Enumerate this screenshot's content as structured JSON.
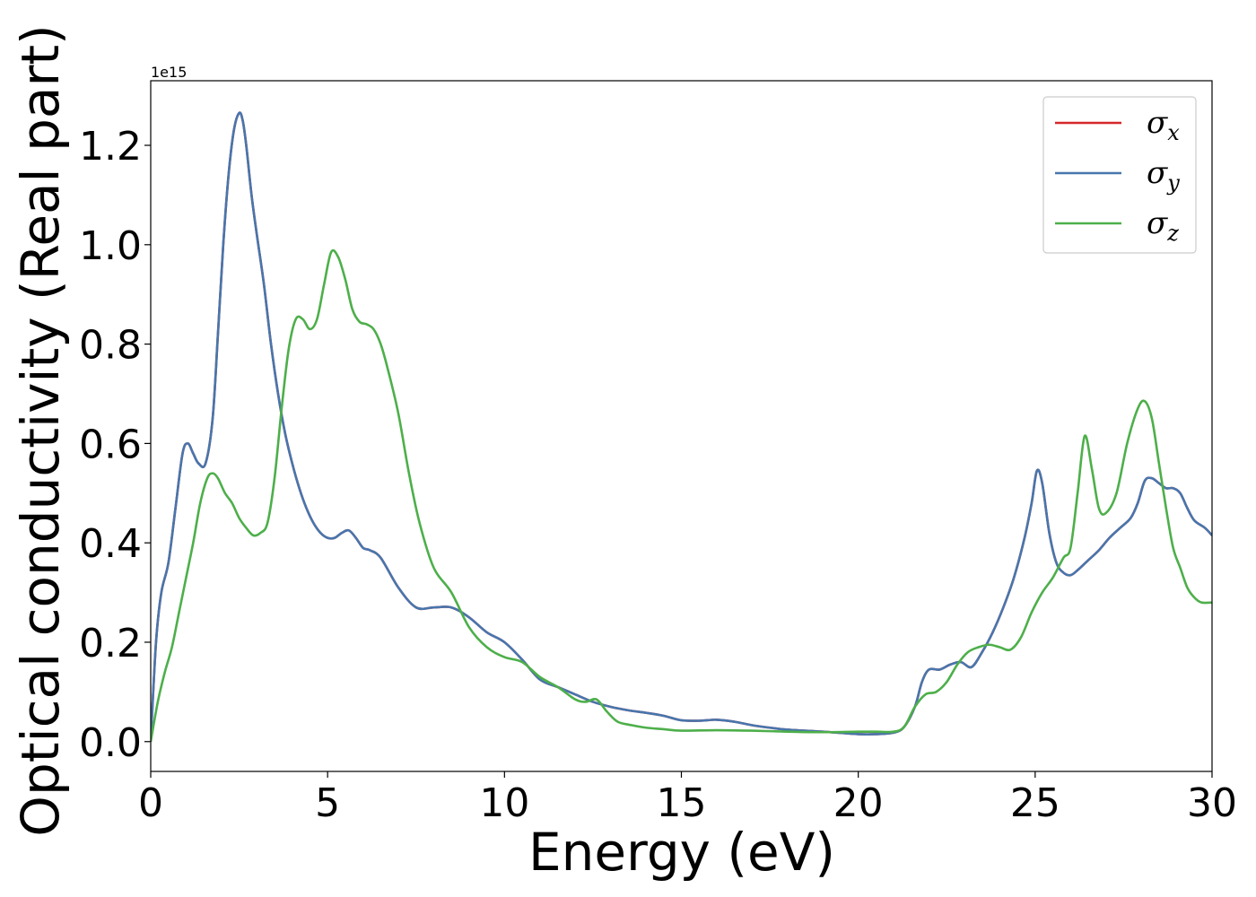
{
  "chart_data": {
    "type": "line",
    "xlabel": "Energy (eV)",
    "ylabel": "Optical conductivity (Real part)",
    "y_offset_label": "1e15",
    "xlim": [
      0,
      30
    ],
    "ylim": [
      -0.06,
      1.33
    ],
    "xticks": [
      0,
      5,
      10,
      15,
      20,
      25,
      30
    ],
    "xtick_labels": [
      "0",
      "5",
      "10",
      "15",
      "20",
      "25",
      "30"
    ],
    "yticks": [
      0.0,
      0.2,
      0.4,
      0.6,
      0.8,
      1.0,
      1.2
    ],
    "ytick_labels": [
      "0.0",
      "0.2",
      "0.4",
      "0.6",
      "0.8",
      "1.0",
      "1.2"
    ],
    "grid": false,
    "legend_position": "top-right",
    "series": [
      {
        "name": "σx",
        "symbol": "σ",
        "sub": "x",
        "color": "#d62728",
        "x": [
          0,
          0.15,
          0.3,
          0.5,
          0.7,
          0.9,
          1.05,
          1.2,
          1.35,
          1.55,
          1.75,
          1.9,
          2.05,
          2.2,
          2.35,
          2.5,
          2.6,
          2.7,
          2.85,
          3.0,
          3.2,
          3.4,
          3.6,
          3.8,
          4.0,
          4.2,
          4.4,
          4.6,
          4.8,
          5.0,
          5.2,
          5.4,
          5.6,
          5.8,
          6.0,
          6.2,
          6.5,
          7.0,
          7.5,
          8.0,
          8.5,
          9.0,
          9.5,
          10.0,
          10.5,
          11.0,
          11.5,
          12.0,
          12.5,
          13.0,
          13.5,
          14.0,
          14.5,
          15.0,
          15.5,
          16.0,
          16.5,
          17.0,
          17.5,
          18.0,
          19.0,
          20.0,
          20.5,
          21.0,
          21.3,
          21.6,
          21.8,
          22.0,
          22.3,
          22.6,
          22.9,
          23.2,
          23.5,
          23.8,
          24.1,
          24.4,
          24.7,
          24.9,
          25.05,
          25.2,
          25.4,
          25.6,
          25.8,
          26.0,
          26.2,
          26.5,
          26.8,
          27.1,
          27.4,
          27.7,
          27.9,
          28.1,
          28.3,
          28.5,
          28.7,
          28.9,
          29.1,
          29.3,
          29.5,
          29.8,
          30.0
        ],
        "values": [
          0.0,
          0.2,
          0.3,
          0.36,
          0.47,
          0.58,
          0.6,
          0.58,
          0.56,
          0.56,
          0.65,
          0.82,
          1.0,
          1.14,
          1.23,
          1.265,
          1.25,
          1.2,
          1.1,
          1.02,
          0.92,
          0.8,
          0.7,
          0.62,
          0.56,
          0.51,
          0.47,
          0.44,
          0.42,
          0.41,
          0.41,
          0.42,
          0.425,
          0.41,
          0.39,
          0.385,
          0.37,
          0.31,
          0.27,
          0.27,
          0.27,
          0.25,
          0.22,
          0.2,
          0.165,
          0.125,
          0.11,
          0.095,
          0.08,
          0.07,
          0.063,
          0.058,
          0.052,
          0.043,
          0.042,
          0.044,
          0.04,
          0.033,
          0.028,
          0.024,
          0.02,
          0.015,
          0.015,
          0.018,
          0.03,
          0.07,
          0.12,
          0.145,
          0.145,
          0.155,
          0.16,
          0.15,
          0.18,
          0.22,
          0.27,
          0.33,
          0.41,
          0.48,
          0.545,
          0.52,
          0.42,
          0.36,
          0.34,
          0.335,
          0.345,
          0.365,
          0.385,
          0.41,
          0.43,
          0.45,
          0.48,
          0.525,
          0.53,
          0.52,
          0.51,
          0.51,
          0.5,
          0.47,
          0.445,
          0.43,
          0.415
        ]
      },
      {
        "name": "σy",
        "symbol": "σ",
        "sub": "y",
        "color": "#4776ad",
        "x": [
          0,
          0.15,
          0.3,
          0.5,
          0.7,
          0.9,
          1.05,
          1.2,
          1.35,
          1.55,
          1.75,
          1.9,
          2.05,
          2.2,
          2.35,
          2.5,
          2.6,
          2.7,
          2.85,
          3.0,
          3.2,
          3.4,
          3.6,
          3.8,
          4.0,
          4.2,
          4.4,
          4.6,
          4.8,
          5.0,
          5.2,
          5.4,
          5.6,
          5.8,
          6.0,
          6.2,
          6.5,
          7.0,
          7.5,
          8.0,
          8.5,
          9.0,
          9.5,
          10.0,
          10.5,
          11.0,
          11.5,
          12.0,
          12.5,
          13.0,
          13.5,
          14.0,
          14.5,
          15.0,
          15.5,
          16.0,
          16.5,
          17.0,
          17.5,
          18.0,
          19.0,
          20.0,
          20.5,
          21.0,
          21.3,
          21.6,
          21.8,
          22.0,
          22.3,
          22.6,
          22.9,
          23.2,
          23.5,
          23.8,
          24.1,
          24.4,
          24.7,
          24.9,
          25.05,
          25.2,
          25.4,
          25.6,
          25.8,
          26.0,
          26.2,
          26.5,
          26.8,
          27.1,
          27.4,
          27.7,
          27.9,
          28.1,
          28.3,
          28.5,
          28.7,
          28.9,
          29.1,
          29.3,
          29.5,
          29.8,
          30.0
        ],
        "values": [
          0.0,
          0.2,
          0.3,
          0.36,
          0.47,
          0.58,
          0.6,
          0.58,
          0.56,
          0.56,
          0.65,
          0.82,
          1.0,
          1.14,
          1.23,
          1.265,
          1.25,
          1.2,
          1.1,
          1.02,
          0.92,
          0.8,
          0.7,
          0.62,
          0.56,
          0.51,
          0.47,
          0.44,
          0.42,
          0.41,
          0.41,
          0.42,
          0.425,
          0.41,
          0.39,
          0.385,
          0.37,
          0.31,
          0.27,
          0.27,
          0.27,
          0.25,
          0.22,
          0.2,
          0.165,
          0.125,
          0.11,
          0.095,
          0.08,
          0.07,
          0.063,
          0.058,
          0.052,
          0.043,
          0.042,
          0.044,
          0.04,
          0.033,
          0.028,
          0.024,
          0.02,
          0.015,
          0.015,
          0.018,
          0.03,
          0.07,
          0.12,
          0.145,
          0.145,
          0.155,
          0.16,
          0.15,
          0.18,
          0.22,
          0.27,
          0.33,
          0.41,
          0.48,
          0.545,
          0.52,
          0.42,
          0.36,
          0.34,
          0.335,
          0.345,
          0.365,
          0.385,
          0.41,
          0.43,
          0.45,
          0.48,
          0.525,
          0.53,
          0.52,
          0.51,
          0.51,
          0.5,
          0.47,
          0.445,
          0.43,
          0.415
        ]
      },
      {
        "name": "σz",
        "symbol": "σ",
        "sub": "z",
        "color": "#4daf4a",
        "x": [
          0,
          0.2,
          0.4,
          0.6,
          0.8,
          1.0,
          1.2,
          1.4,
          1.6,
          1.75,
          1.9,
          2.1,
          2.3,
          2.5,
          2.7,
          2.9,
          3.1,
          3.3,
          3.5,
          3.7,
          3.9,
          4.1,
          4.3,
          4.5,
          4.7,
          4.9,
          5.1,
          5.3,
          5.5,
          5.7,
          5.9,
          6.1,
          6.3,
          6.5,
          6.7,
          7.0,
          7.3,
          7.6,
          8.0,
          8.5,
          9.0,
          9.5,
          10.0,
          10.5,
          11.0,
          11.5,
          12.0,
          12.3,
          12.6,
          12.9,
          13.2,
          13.6,
          14.0,
          14.5,
          15.0,
          16.0,
          17.0,
          18.0,
          19.0,
          20.0,
          20.5,
          21.0,
          21.3,
          21.6,
          21.9,
          22.2,
          22.5,
          22.8,
          23.1,
          23.4,
          23.7,
          24.0,
          24.3,
          24.6,
          24.9,
          25.2,
          25.5,
          25.8,
          26.0,
          26.2,
          26.4,
          26.6,
          26.8,
          27.0,
          27.3,
          27.6,
          27.9,
          28.1,
          28.3,
          28.5,
          28.7,
          28.9,
          29.1,
          29.3,
          29.5,
          29.7,
          30.0
        ],
        "values": [
          0.0,
          0.08,
          0.14,
          0.19,
          0.26,
          0.33,
          0.4,
          0.48,
          0.53,
          0.54,
          0.53,
          0.5,
          0.48,
          0.45,
          0.43,
          0.415,
          0.42,
          0.44,
          0.53,
          0.67,
          0.79,
          0.85,
          0.85,
          0.83,
          0.85,
          0.92,
          0.985,
          0.975,
          0.93,
          0.87,
          0.845,
          0.84,
          0.83,
          0.8,
          0.75,
          0.66,
          0.54,
          0.44,
          0.35,
          0.3,
          0.23,
          0.19,
          0.17,
          0.16,
          0.13,
          0.11,
          0.085,
          0.08,
          0.085,
          0.06,
          0.04,
          0.033,
          0.028,
          0.025,
          0.022,
          0.023,
          0.022,
          0.02,
          0.019,
          0.02,
          0.02,
          0.02,
          0.03,
          0.07,
          0.095,
          0.1,
          0.12,
          0.155,
          0.18,
          0.19,
          0.195,
          0.19,
          0.185,
          0.21,
          0.26,
          0.3,
          0.33,
          0.37,
          0.39,
          0.5,
          0.615,
          0.55,
          0.47,
          0.46,
          0.5,
          0.6,
          0.67,
          0.685,
          0.65,
          0.56,
          0.47,
          0.39,
          0.35,
          0.31,
          0.29,
          0.28,
          0.28
        ]
      }
    ]
  }
}
